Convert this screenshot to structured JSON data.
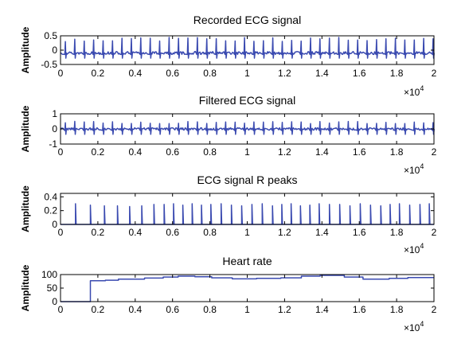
{
  "accent_color": "#3a4ab0",
  "chart_data": [
    {
      "type": "line",
      "title": "Recorded ECG signal",
      "xlabel": "",
      "ylabel": "Amplitude",
      "xlim": [
        0,
        20000
      ],
      "ylim": [
        -0.5,
        0.5
      ],
      "x_ticks": [
        0,
        2000,
        4000,
        6000,
        8000,
        10000,
        12000,
        14000,
        16000,
        18000,
        20000
      ],
      "x_tick_labels": [
        "0",
        "0.2",
        "0.4",
        "0.6",
        "0.8",
        "1",
        "1.2",
        "1.4",
        "1.6",
        "1.8",
        "2"
      ],
      "y_ticks": [
        -0.5,
        0,
        0.5
      ],
      "y_tick_labels": [
        "-0.5",
        "0",
        "0.5"
      ],
      "x_multiplier": "×10",
      "x_multiplier_exp": "4",
      "series": [
        {
          "beats": 39,
          "first_beat": 260,
          "beat_interval": 505,
          "baseline": -0.1,
          "noise": 0.05,
          "peak_min": 0.3,
          "peak_max": 0.45
        }
      ]
    },
    {
      "type": "line",
      "title": "Filtered ECG signal",
      "xlabel": "",
      "ylabel": "Amplitude",
      "xlim": [
        0,
        20000
      ],
      "ylim": [
        -1,
        1
      ],
      "x_ticks": [
        0,
        2000,
        4000,
        6000,
        8000,
        10000,
        12000,
        14000,
        16000,
        18000,
        20000
      ],
      "x_tick_labels": [
        "0",
        "0.2",
        "0.4",
        "0.6",
        "0.8",
        "1",
        "1.2",
        "1.4",
        "1.6",
        "1.8",
        "2"
      ],
      "y_ticks": [
        -1,
        0,
        1
      ],
      "y_tick_labels": [
        "-1",
        "0",
        "1"
      ],
      "x_multiplier": "×10",
      "x_multiplier_exp": "4",
      "series": [
        {
          "beats": 39,
          "first_beat": 260,
          "beat_interval": 505,
          "baseline": 0,
          "noise": 0.04,
          "peak_min": 0.35,
          "peak_max": 0.5
        }
      ]
    },
    {
      "type": "line",
      "title": "ECG signal R peaks",
      "xlabel": "",
      "ylabel": "Amplitude",
      "xlim": [
        0,
        20000
      ],
      "ylim": [
        0,
        0.45
      ],
      "x_ticks": [
        0,
        2000,
        4000,
        6000,
        8000,
        10000,
        12000,
        14000,
        16000,
        18000,
        20000
      ],
      "x_tick_labels": [
        "0",
        "0.2",
        "0.4",
        "0.6",
        "0.8",
        "1",
        "1.2",
        "1.4",
        "1.6",
        "1.8",
        "2"
      ],
      "y_ticks": [
        0,
        0.2,
        0.4
      ],
      "y_tick_labels": [
        "0",
        "0.2",
        "0.4"
      ],
      "x_multiplier": "×10",
      "x_multiplier_exp": "4",
      "series": [
        {
          "peaks_x": [
            800,
            1600,
            2350,
            3050,
            3700,
            4350,
            5000,
            5550,
            6050,
            6550,
            7050,
            7550,
            8050,
            8600,
            9150,
            9700,
            10250,
            10800,
            11350,
            11850,
            12350,
            12850,
            13350,
            13850,
            14400,
            14950,
            15500,
            16050,
            16600,
            17150,
            17650,
            18150,
            18700,
            19250,
            19750
          ],
          "peaks_y": [
            0.3,
            0.28,
            0.27,
            0.27,
            0.26,
            0.27,
            0.29,
            0.29,
            0.3,
            0.28,
            0.3,
            0.28,
            0.29,
            0.3,
            0.28,
            0.27,
            0.29,
            0.3,
            0.27,
            0.29,
            0.3,
            0.27,
            0.28,
            0.3,
            0.29,
            0.29,
            0.27,
            0.3,
            0.28,
            0.27,
            0.29,
            0.3,
            0.28,
            0.29,
            0.3
          ]
        }
      ]
    },
    {
      "type": "line",
      "title": "Heart rate",
      "xlabel": "",
      "ylabel": "Amplitude",
      "xlim": [
        0,
        20000
      ],
      "ylim": [
        0,
        100
      ],
      "x_ticks": [
        0,
        2000,
        4000,
        6000,
        8000,
        10000,
        12000,
        14000,
        16000,
        18000,
        20000
      ],
      "x_tick_labels": [
        "0",
        "0.2",
        "0.4",
        "0.6",
        "0.8",
        "1",
        "1.2",
        "1.4",
        "1.6",
        "1.8",
        "2"
      ],
      "y_ticks": [
        0,
        50,
        100
      ],
      "y_tick_labels": [
        "0",
        "50",
        "100"
      ],
      "x_multiplier": "×10",
      "x_multiplier_exp": "4",
      "series": [
        {
          "x": [
            0,
            1600,
            1600,
            2400,
            2400,
            3100,
            3100,
            4500,
            4500,
            5500,
            5500,
            6300,
            6300,
            7200,
            7200,
            8100,
            8100,
            9200,
            9200,
            10500,
            10500,
            11800,
            11800,
            12900,
            12900,
            13900,
            13900,
            15200,
            15200,
            16200,
            16200,
            17600,
            17600,
            18600,
            18600,
            20000
          ],
          "y": [
            0,
            0,
            77,
            77,
            79,
            79,
            83,
            83,
            87,
            87,
            91,
            91,
            94,
            94,
            92,
            92,
            88,
            88,
            84,
            84,
            86,
            86,
            88,
            88,
            94,
            94,
            97,
            97,
            91,
            91,
            83,
            83,
            86,
            86,
            89,
            89
          ]
        }
      ]
    }
  ]
}
